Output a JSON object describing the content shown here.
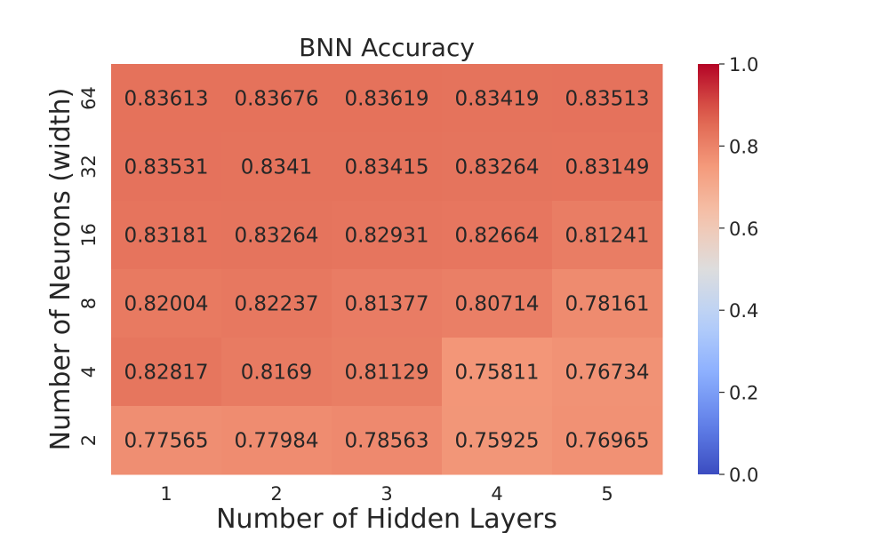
{
  "chart_data": {
    "type": "heatmap",
    "title": "BNN Accuracy",
    "xlabel": "Number of Hidden Layers",
    "ylabel": "Number of Neurons (width)",
    "x_categories": [
      "1",
      "2",
      "3",
      "4",
      "5"
    ],
    "y_categories": [
      "64",
      "32",
      "16",
      "8",
      "4",
      "2"
    ],
    "values": [
      [
        "0.83613",
        "0.83676",
        "0.83619",
        "0.83419",
        "0.83513"
      ],
      [
        "0.83531",
        "0.8341",
        "0.83415",
        "0.83264",
        "0.83149"
      ],
      [
        "0.83181",
        "0.83264",
        "0.82931",
        "0.82664",
        "0.81241"
      ],
      [
        "0.82004",
        "0.82237",
        "0.81377",
        "0.80714",
        "0.78161"
      ],
      [
        "0.82817",
        "0.8169",
        "0.81129",
        "0.75811",
        "0.76734"
      ],
      [
        "0.77565",
        "0.77984",
        "0.78563",
        "0.75925",
        "0.76965"
      ]
    ],
    "colormap": "coolwarm",
    "vmin": 0.0,
    "vmax": 1.0,
    "colorbar_ticks": [
      "0.0",
      "0.2",
      "0.4",
      "0.6",
      "0.8",
      "1.0"
    ],
    "grid": false,
    "colors": {
      "low": "#3b4cc0",
      "mid": "#dddddd",
      "high": "#b40426",
      "light_text": "#ffffff",
      "dark_text": "#262626"
    }
  }
}
